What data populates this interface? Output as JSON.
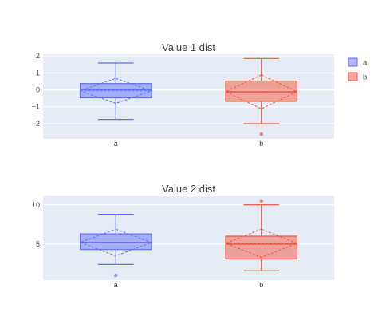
{
  "colors": {
    "plot_bg": "#e5ecf6",
    "grid": "#ffffff",
    "text": "#444444",
    "series_a": "#636efa",
    "series_b": "#ef553b"
  },
  "legend": {
    "placement": "top-right",
    "items": [
      {
        "label": "a",
        "color": "#636efa"
      },
      {
        "label": "b",
        "color": "#ef553b"
      }
    ]
  },
  "chart_data": [
    {
      "type": "box",
      "title": "Value 1 dist",
      "xlabel": "",
      "ylabel": "",
      "categories": [
        "a",
        "b"
      ],
      "ylim": [
        -2.9,
        2.1
      ],
      "yticks": [
        2,
        1,
        0,
        -1,
        -2
      ],
      "ytick_labels": [
        "2",
        "1",
        "0",
        "−1",
        "−2"
      ],
      "grid": true,
      "series": [
        {
          "name": "a",
          "category": "a",
          "color": "#636efa",
          "min": -1.75,
          "q1": -0.47,
          "median": 0.0,
          "q3": 0.37,
          "max": 1.58,
          "mean": -0.06,
          "sd_low": -0.8,
          "sd_high": 0.68,
          "outliers": []
        },
        {
          "name": "b",
          "category": "b",
          "color": "#ef553b",
          "min": -2.0,
          "q1": -0.68,
          "median": -0.12,
          "q3": 0.52,
          "max": 1.85,
          "mean": -0.11,
          "sd_low": -1.12,
          "sd_high": 0.88,
          "outliers": [
            -2.62
          ]
        }
      ]
    },
    {
      "type": "box",
      "title": "Value 2 dist",
      "xlabel": "",
      "ylabel": "",
      "categories": [
        "a",
        "b"
      ],
      "ylim": [
        0.4,
        11.2
      ],
      "yticks": [
        10,
        5
      ],
      "ytick_labels": [
        "10",
        "5"
      ],
      "grid": true,
      "series": [
        {
          "name": "a",
          "category": "a",
          "color": "#636efa",
          "min": 2.4,
          "q1": 4.3,
          "median": 5.2,
          "q3": 6.3,
          "max": 8.8,
          "mean": 5.2,
          "sd_low": 3.5,
          "sd_high": 6.9,
          "outliers": [
            1.0
          ]
        },
        {
          "name": "b",
          "category": "b",
          "color": "#ef553b",
          "min": 1.6,
          "q1": 3.1,
          "median": 5.0,
          "q3": 6.0,
          "max": 10.0,
          "mean": 5.1,
          "sd_low": 3.3,
          "sd_high": 6.9,
          "outliers": [
            10.5
          ]
        }
      ]
    }
  ]
}
